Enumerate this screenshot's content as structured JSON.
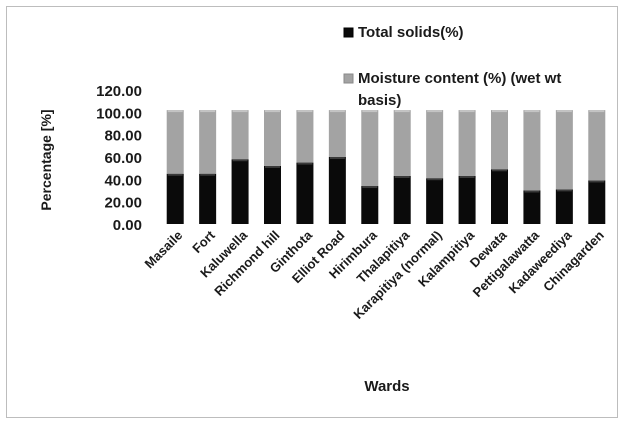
{
  "chart_data": {
    "type": "bar",
    "stacked": true,
    "title": "",
    "xlabel": "Wards",
    "ylabel": "Percentage [%]",
    "ylim": [
      0,
      120
    ],
    "yticks": [
      "0.00",
      "20.00",
      "40.00",
      "60.00",
      "80.00",
      "100.00",
      "120.00"
    ],
    "grid": false,
    "legend_position": "top-right",
    "categories": [
      "Masaile",
      "Fort",
      "Kaluwella",
      "Richmond hill",
      "Ginthota",
      "Elliot Road",
      "Hirimbura",
      "Thalapitiya",
      "Karapitiya (normal)",
      "Kalampitiya",
      "Dewata",
      "Pettigalawatta",
      "Kadaweediya",
      "Chinagarden"
    ],
    "series": [
      {
        "name": "Total solids(%)",
        "color": "#0a0a0a",
        "values": [
          45,
          45,
          58,
          52,
          55,
          60,
          34,
          43,
          41,
          43,
          49,
          30,
          31,
          39
        ]
      },
      {
        "name": "Moisture content (%) (wet wt basis)",
        "color": "#a3a3a3",
        "values": [
          57,
          57,
          44,
          50,
          47,
          42,
          68,
          59,
          61,
          59,
          53,
          72,
          71,
          63
        ]
      }
    ]
  }
}
